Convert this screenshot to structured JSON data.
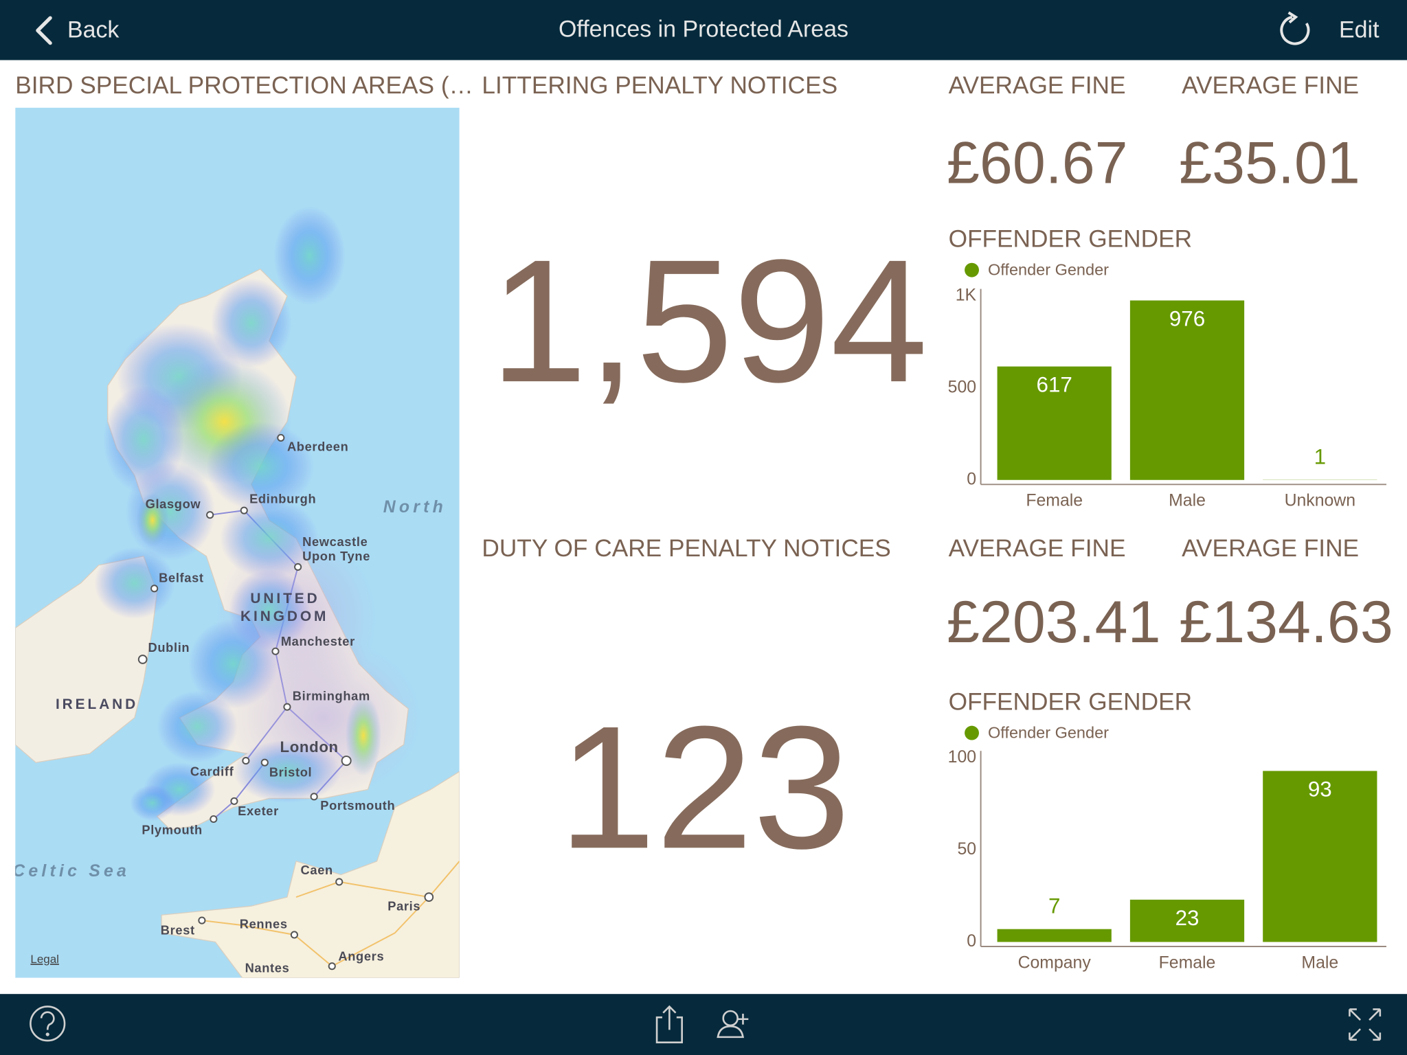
{
  "header": {
    "back": "Back",
    "title": "Offences in Protected Areas",
    "edit": "Edit"
  },
  "map": {
    "title": "BIRD SPECIAL PROTECTION AREAS (…",
    "labels": [
      "Aberdeen",
      "Glasgow",
      "Edinburgh",
      "North",
      "Newcastle",
      "Upon Tyne",
      "Belfast",
      "UNITED",
      "KINGDOM",
      "Dublin",
      "Manchester",
      "IRELAND",
      "Birmingham",
      "London",
      "Cardiff",
      "Bristol",
      "Exeter",
      "Portsmouth",
      "Plymouth",
      "Celtic Sea",
      "Caen",
      "Paris",
      "Brest",
      "Rennes",
      "Angers",
      "Nantes"
    ],
    "legal": "Legal"
  },
  "littering": {
    "title": "LITTERING PENALTY NOTICES",
    "value": "1,594",
    "fines": [
      {
        "title": "AVERAGE FINE",
        "value": "£60.67"
      },
      {
        "title": "AVERAGE FINE",
        "value": "£35.01"
      }
    ]
  },
  "duty_of_care": {
    "title": "DUTY OF CARE PENALTY NOTICES",
    "value": "123",
    "fines": [
      {
        "title": "AVERAGE FINE",
        "value": "£203.41"
      },
      {
        "title": "AVERAGE FINE",
        "value": "£134.63"
      }
    ]
  },
  "chart_data": [
    {
      "type": "bar",
      "title": "OFFENDER GENDER",
      "categories": [
        "Female",
        "Male",
        "Unknown"
      ],
      "series": [
        {
          "name": "Offender Gender",
          "color": "#669900",
          "values": [
            617,
            976,
            1
          ]
        }
      ],
      "ylim": [
        0,
        1000
      ],
      "yticks": [
        0,
        500,
        {
          "value": 1000,
          "label": "1K"
        }
      ]
    },
    {
      "type": "bar",
      "title": "OFFENDER GENDER",
      "categories": [
        "Company",
        "Female",
        "Male"
      ],
      "series": [
        {
          "name": "Offender Gender",
          "color": "#669900",
          "values": [
            7,
            23,
            93
          ]
        }
      ],
      "ylim": [
        0,
        100
      ],
      "yticks": [
        0,
        50,
        100
      ]
    }
  ]
}
